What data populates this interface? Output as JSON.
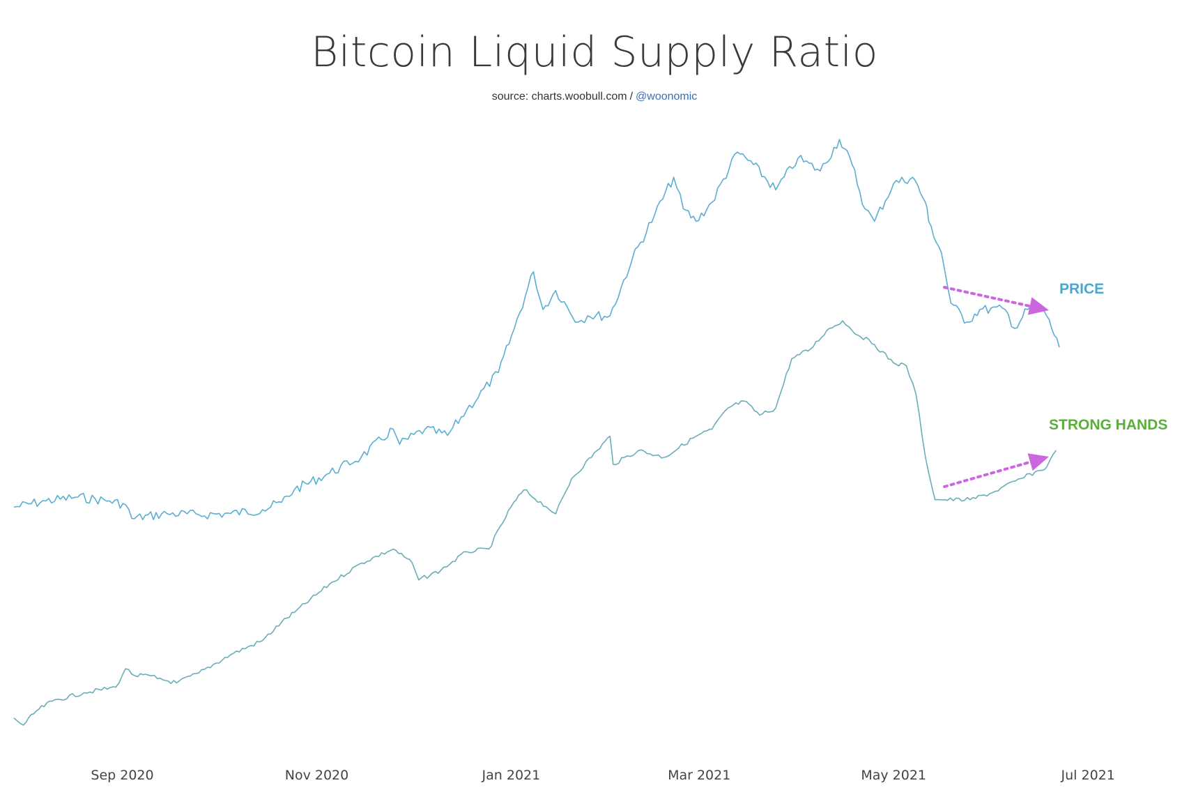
{
  "chart_data": {
    "type": "line",
    "title": "Bitcoin Liquid Supply Ratio",
    "subtitle": {
      "prefix": "source: charts.woobull.com",
      "separator": "/",
      "handle": "@woonomic"
    },
    "x_ticks": [
      "Sep 2020",
      "Nov 2020",
      "Jan 2021",
      "Mar 2021",
      "May 2021",
      "Jul 2021"
    ],
    "x_range": [
      "2020-07-29",
      "2021-06-22"
    ],
    "grid": false,
    "y_axis_visible": false,
    "series": [
      {
        "name": "PRICE",
        "color": "#5aaed0",
        "label_color": "#4aa8d0",
        "points": [
          [
            "2020-07-29",
            0.58
          ],
          [
            "2020-08-08",
            0.63
          ],
          [
            "2020-08-18",
            0.66
          ],
          [
            "2020-08-28",
            0.63
          ],
          [
            "2020-09-02",
            0.6
          ],
          [
            "2020-09-04",
            0.49
          ],
          [
            "2020-09-15",
            0.53
          ],
          [
            "2020-09-25",
            0.52
          ],
          [
            "2020-10-05",
            0.53
          ],
          [
            "2020-10-15",
            0.56
          ],
          [
            "2020-10-21",
            0.62
          ],
          [
            "2020-10-25",
            0.72
          ],
          [
            "2020-11-05",
            0.85
          ],
          [
            "2020-11-15",
            0.98
          ],
          [
            "2020-11-25",
            1.2
          ],
          [
            "2020-11-27",
            1.08
          ],
          [
            "2020-12-05",
            1.2
          ],
          [
            "2020-12-12",
            1.15
          ],
          [
            "2020-12-18",
            1.35
          ],
          [
            "2020-12-28",
            1.65
          ],
          [
            "2021-01-02",
            2.0
          ],
          [
            "2021-01-08",
            2.45
          ],
          [
            "2021-01-11",
            2.15
          ],
          [
            "2021-01-15",
            2.3
          ],
          [
            "2021-01-22",
            2.05
          ],
          [
            "2021-01-25",
            2.1
          ],
          [
            "2021-02-01",
            2.1
          ],
          [
            "2021-02-08",
            2.55
          ],
          [
            "2021-02-15",
            2.9
          ],
          [
            "2021-02-21",
            3.2
          ],
          [
            "2021-02-24",
            2.95
          ],
          [
            "2021-02-28",
            2.85
          ],
          [
            "2021-03-05",
            3.0
          ],
          [
            "2021-03-13",
            3.4
          ],
          [
            "2021-03-18",
            3.3
          ],
          [
            "2021-03-25",
            3.1
          ],
          [
            "2021-04-01",
            3.35
          ],
          [
            "2021-04-08",
            3.25
          ],
          [
            "2021-04-14",
            3.5
          ],
          [
            "2021-04-18",
            3.3
          ],
          [
            "2021-04-22",
            2.95
          ],
          [
            "2021-04-25",
            2.85
          ],
          [
            "2021-05-01",
            3.15
          ],
          [
            "2021-05-07",
            3.2
          ],
          [
            "2021-05-11",
            3.0
          ],
          [
            "2021-05-12",
            2.85
          ],
          [
            "2021-05-16",
            2.6
          ],
          [
            "2021-05-19",
            2.2
          ],
          [
            "2021-05-24",
            2.05
          ],
          [
            "2021-05-28",
            2.15
          ],
          [
            "2021-06-05",
            2.15
          ],
          [
            "2021-06-08",
            2.0
          ],
          [
            "2021-06-12",
            2.15
          ],
          [
            "2021-06-15",
            2.2
          ],
          [
            "2021-06-18",
            2.1
          ],
          [
            "2021-06-22",
            1.85
          ]
        ]
      },
      {
        "name": "STRONG HANDS",
        "color": "#6aadb8",
        "label_color": "#5aaf3a",
        "points": [
          [
            "2020-07-29",
            0.0
          ],
          [
            "2020-08-01",
            -0.05
          ],
          [
            "2020-08-05",
            0.05
          ],
          [
            "2020-08-10",
            0.12
          ],
          [
            "2020-08-20",
            0.18
          ],
          [
            "2020-08-30",
            0.22
          ],
          [
            "2020-09-02",
            0.35
          ],
          [
            "2020-09-05",
            0.3
          ],
          [
            "2020-09-10",
            0.3
          ],
          [
            "2020-09-12",
            0.28
          ],
          [
            "2020-09-18",
            0.25
          ],
          [
            "2020-09-25",
            0.32
          ],
          [
            "2020-10-05",
            0.45
          ],
          [
            "2020-10-15",
            0.55
          ],
          [
            "2020-10-21",
            0.68
          ],
          [
            "2020-10-25",
            0.75
          ],
          [
            "2020-11-05",
            0.95
          ],
          [
            "2020-11-15",
            1.1
          ],
          [
            "2020-11-25",
            1.2
          ],
          [
            "2020-12-01",
            1.1
          ],
          [
            "2020-12-03",
            0.98
          ],
          [
            "2020-12-10",
            1.05
          ],
          [
            "2020-12-18",
            1.18
          ],
          [
            "2020-12-25",
            1.2
          ],
          [
            "2021-01-01",
            1.5
          ],
          [
            "2021-01-05",
            1.62
          ],
          [
            "2021-01-12",
            1.5
          ],
          [
            "2021-01-15",
            1.45
          ],
          [
            "2021-01-20",
            1.7
          ],
          [
            "2021-01-28",
            1.9
          ],
          [
            "2021-02-01",
            2.0
          ],
          [
            "2021-02-02",
            1.8
          ],
          [
            "2021-02-10",
            1.9
          ],
          [
            "2021-02-18",
            1.85
          ],
          [
            "2021-02-28",
            2.0
          ],
          [
            "2021-03-05",
            2.05
          ],
          [
            "2021-03-10",
            2.2
          ],
          [
            "2021-03-15",
            2.25
          ],
          [
            "2021-03-20",
            2.15
          ],
          [
            "2021-03-25",
            2.2
          ],
          [
            "2021-03-30",
            2.55
          ],
          [
            "2021-04-05",
            2.62
          ],
          [
            "2021-04-10",
            2.75
          ],
          [
            "2021-04-15",
            2.82
          ],
          [
            "2021-04-18",
            2.75
          ],
          [
            "2021-04-25",
            2.65
          ],
          [
            "2021-05-01",
            2.52
          ],
          [
            "2021-05-05",
            2.5
          ],
          [
            "2021-05-08",
            2.3
          ],
          [
            "2021-05-11",
            1.85
          ],
          [
            "2021-05-14",
            1.55
          ],
          [
            "2021-05-17",
            1.55
          ],
          [
            "2021-05-25",
            1.55
          ],
          [
            "2021-06-01",
            1.6
          ],
          [
            "2021-06-10",
            1.7
          ],
          [
            "2021-06-18",
            1.78
          ],
          [
            "2021-06-21",
            1.9
          ]
        ]
      }
    ],
    "annotations": [
      {
        "series": "PRICE",
        "trend": "down",
        "color": "#cc66e0"
      },
      {
        "series": "STRONG HANDS",
        "trend": "up",
        "color": "#cc66e0"
      }
    ]
  }
}
